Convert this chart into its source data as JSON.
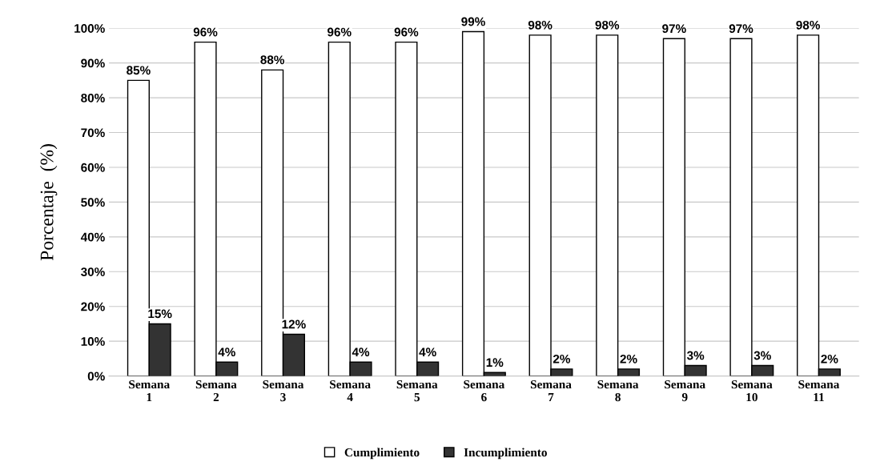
{
  "chart_data": {
    "type": "bar",
    "ylabel": "Porcentaje  (%)",
    "categories": [
      "Semana\n1",
      "Semana\n2",
      "Semana\n3",
      "Semana\n4",
      "Semana\n5",
      "Semana\n6",
      "Semana\n7",
      "Semana\n8",
      "Semana\n9",
      "Semana\n10",
      "Semana\n11"
    ],
    "series": [
      {
        "name": "Cumplimiento",
        "color": "#ffffff",
        "values": [
          85,
          96,
          88,
          96,
          96,
          99,
          98,
          98,
          97,
          97,
          98
        ],
        "value_labels": [
          "85%",
          "96%",
          "88%",
          "96%",
          "96%",
          "99%",
          "98%",
          "98%",
          "97%",
          "97%",
          "98%"
        ]
      },
      {
        "name": "Incumplimiento",
        "color": "#333333",
        "values": [
          15,
          4,
          12,
          4,
          4,
          1,
          2,
          2,
          3,
          3,
          2
        ],
        "value_labels": [
          "15%",
          "4%",
          "12%",
          "4%",
          "4%",
          "1%",
          "2%",
          "2%",
          "3%",
          "3%",
          "2%"
        ]
      }
    ],
    "ylim": [
      0,
      100
    ],
    "yticks": [
      {
        "value": 0,
        "label": "0%"
      },
      {
        "value": 10,
        "label": "10%"
      },
      {
        "value": 20,
        "label": "20%"
      },
      {
        "value": 30,
        "label": "30%"
      },
      {
        "value": 40,
        "label": "40%"
      },
      {
        "value": 50,
        "label": "50%"
      },
      {
        "value": 60,
        "label": "60%"
      },
      {
        "value": 70,
        "label": "70%"
      },
      {
        "value": 80,
        "label": "80%"
      },
      {
        "value": 90,
        "label": "90%"
      },
      {
        "value": 100,
        "label": "100%"
      }
    ],
    "grid": "y",
    "legend": "bottom"
  }
}
